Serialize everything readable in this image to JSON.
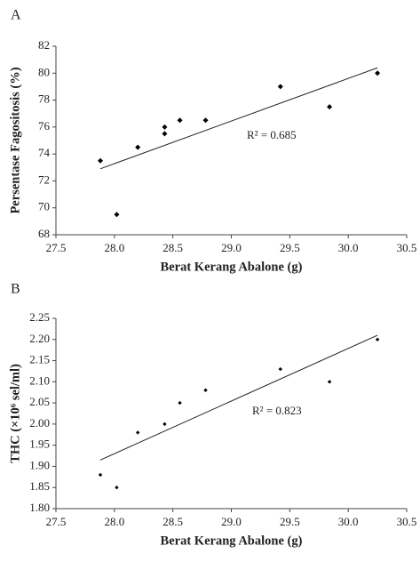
{
  "chart_data": [
    {
      "type": "scatter",
      "label": "A",
      "xlabel": "Berat Kerang Abalone (g)",
      "ylabel": "Persentase Fagositosis (%)",
      "x": [
        27.88,
        28.02,
        28.2,
        28.43,
        28.43,
        28.56,
        28.78,
        29.42,
        29.84,
        30.25
      ],
      "values": [
        73.5,
        69.5,
        74.5,
        76,
        75.5,
        76.5,
        76.5,
        79,
        77.5,
        80
      ],
      "color": "#000000",
      "trendline": {
        "x": [
          27.88,
          30.25
        ],
        "values": [
          72.9,
          80.4
        ]
      },
      "annotation": "R² = 0.685",
      "xlim": [
        27.5,
        30.5
      ],
      "ylim": [
        68,
        82
      ],
      "xticks": [
        27.5,
        {
          "value": 28,
          "label": "28.0"
        },
        28.5,
        {
          "value": 29,
          "label": "29.0"
        },
        29.5,
        {
          "value": 30,
          "label": "30.0"
        },
        30.5
      ],
      "yticks": [
        68,
        70,
        72,
        74,
        76,
        78,
        80,
        82
      ]
    },
    {
      "type": "scatter",
      "label": "B",
      "xlabel": "Berat Kerang Abalone (g)",
      "ylabel": "THC (×10⁶ sel/ml)",
      "x": [
        27.88,
        28.02,
        28.2,
        28.43,
        28.56,
        28.78,
        29.42,
        29.84,
        30.25
      ],
      "values": [
        1.88,
        1.85,
        1.98,
        2.0,
        2.05,
        2.08,
        2.13,
        2.1,
        2.2
      ],
      "color": "#000000",
      "trendline": {
        "x": [
          27.88,
          30.25
        ],
        "values": [
          1.915,
          2.21
        ]
      },
      "annotation": "R² = 0.823",
      "xlim": [
        27.5,
        30.5
      ],
      "ylim": [
        1.8,
        2.25
      ],
      "xticks": [
        27.5,
        {
          "value": 28,
          "label": "28.0"
        },
        28.5,
        {
          "value": 29,
          "label": "29.0"
        },
        29.5,
        {
          "value": 30,
          "label": "30.0"
        },
        30.5
      ],
      "yticks": [
        {
          "value": 1.8,
          "label": "1.80"
        },
        1.85,
        {
          "value": 1.9,
          "label": "1.90"
        },
        1.95,
        {
          "value": 2.0,
          "label": "2.00"
        },
        2.05,
        {
          "value": 2.1,
          "label": "2.10"
        },
        2.15,
        {
          "value": 2.2,
          "label": "2.20"
        },
        2.25
      ]
    }
  ]
}
